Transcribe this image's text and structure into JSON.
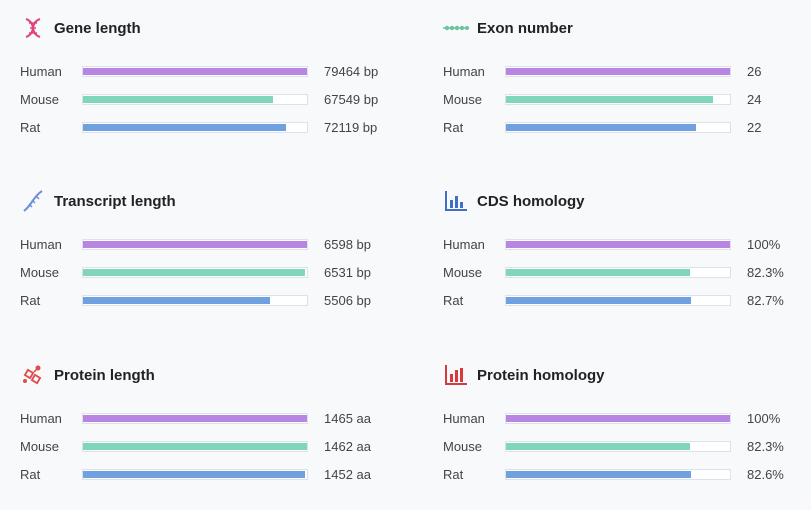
{
  "colors": {
    "human": "#b985e3",
    "mouse": "#7fd6bd",
    "rat": "#6fa1e0"
  },
  "chart_data": [
    {
      "type": "bar",
      "orientation": "horizontal",
      "title": "Gene length",
      "icon": "dna-icon",
      "max": 79464,
      "categories": [
        "Human",
        "Mouse",
        "Rat"
      ],
      "values": [
        79464,
        67549,
        72119
      ],
      "value_labels": [
        "79464 bp",
        "67549 bp",
        "72119 bp"
      ]
    },
    {
      "type": "bar",
      "orientation": "horizontal",
      "title": "Exon number",
      "icon": "exon-icon",
      "max": 26,
      "categories": [
        "Human",
        "Mouse",
        "Rat"
      ],
      "values": [
        26,
        24,
        22
      ],
      "value_labels": [
        "26",
        "24",
        "22"
      ]
    },
    {
      "type": "bar",
      "orientation": "horizontal",
      "title": "Transcript length",
      "icon": "rna-icon",
      "max": 6598,
      "categories": [
        "Human",
        "Mouse",
        "Rat"
      ],
      "values": [
        6598,
        6531,
        5506
      ],
      "value_labels": [
        "6598 bp",
        "6531 bp",
        "5506 bp"
      ]
    },
    {
      "type": "bar",
      "orientation": "horizontal",
      "title": "CDS homology",
      "icon": "bar-chart-blue-icon",
      "max": 100,
      "categories": [
        "Human",
        "Mouse",
        "Rat"
      ],
      "values": [
        100,
        82.3,
        82.7
      ],
      "value_labels": [
        "100%",
        "82.3%",
        "82.7%"
      ]
    },
    {
      "type": "bar",
      "orientation": "horizontal",
      "title": "Protein length",
      "icon": "protein-icon",
      "max": 1465,
      "categories": [
        "Human",
        "Mouse",
        "Rat"
      ],
      "values": [
        1465,
        1462,
        1452
      ],
      "value_labels": [
        "1465 aa",
        "1462 aa",
        "1452 aa"
      ]
    },
    {
      "type": "bar",
      "orientation": "horizontal",
      "title": "Protein homology",
      "icon": "bar-chart-red-icon",
      "max": 100,
      "categories": [
        "Human",
        "Mouse",
        "Rat"
      ],
      "values": [
        100,
        82.3,
        82.6
      ],
      "value_labels": [
        "100%",
        "82.3%",
        "82.6%"
      ]
    }
  ]
}
